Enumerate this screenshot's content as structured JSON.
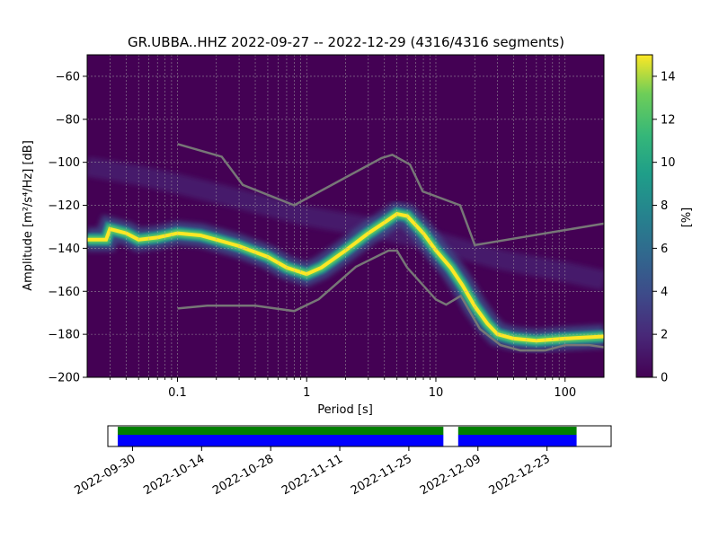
{
  "chart_data": {
    "type": "heatmap",
    "title": "GR.UBBA..HHZ   2022-09-27 -- 2022-12-29  (4316/4316 segments)",
    "xlabel": "Period [s]",
    "ylabel": "Amplitude [m²/s⁴/Hz] [dB]",
    "x_scale": "log",
    "xlim": [
      0.02,
      200
    ],
    "ylim": [
      -200,
      -50
    ],
    "x_ticks": [
      {
        "value": 0.1,
        "label": "0.1"
      },
      {
        "value": 1,
        "label": "1"
      },
      {
        "value": 10,
        "label": "10"
      },
      {
        "value": 100,
        "label": "100"
      }
    ],
    "y_ticks": [
      {
        "value": -200,
        "label": "−200"
      },
      {
        "value": -180,
        "label": "−180"
      },
      {
        "value": -160,
        "label": "−160"
      },
      {
        "value": -140,
        "label": "−140"
      },
      {
        "value": -120,
        "label": "−120"
      },
      {
        "value": -100,
        "label": "−100"
      },
      {
        "value": -80,
        "label": "−80"
      },
      {
        "value": -60,
        "label": "−60"
      }
    ],
    "grid": true,
    "colormap": "viridis",
    "colorbar": {
      "label": "[%]",
      "range": [
        0,
        15
      ],
      "ticks": [
        {
          "value": 0,
          "label": "0"
        },
        {
          "value": 2,
          "label": "2"
        },
        {
          "value": 4,
          "label": "4"
        },
        {
          "value": 6,
          "label": "6"
        },
        {
          "value": 8,
          "label": "8"
        },
        {
          "value": 10,
          "label": "10"
        },
        {
          "value": 12,
          "label": "12"
        },
        {
          "value": 14,
          "label": "14"
        }
      ]
    },
    "mode_curve": [
      [
        0.02,
        -136
      ],
      [
        0.028,
        -136
      ],
      [
        0.03,
        -131
      ],
      [
        0.04,
        -133
      ],
      [
        0.05,
        -136
      ],
      [
        0.07,
        -135
      ],
      [
        0.1,
        -133
      ],
      [
        0.15,
        -134
      ],
      [
        0.2,
        -136
      ],
      [
        0.3,
        -139
      ],
      [
        0.5,
        -144
      ],
      [
        0.7,
        -149
      ],
      [
        1.0,
        -152
      ],
      [
        1.3,
        -149
      ],
      [
        2.0,
        -141
      ],
      [
        3.0,
        -133
      ],
      [
        4.0,
        -128
      ],
      [
        5.0,
        -124
      ],
      [
        6.0,
        -125
      ],
      [
        8.0,
        -133
      ],
      [
        10,
        -141
      ],
      [
        13,
        -149
      ],
      [
        16,
        -157
      ],
      [
        20,
        -167
      ],
      [
        25,
        -175
      ],
      [
        30,
        -180
      ],
      [
        40,
        -182
      ],
      [
        60,
        -183
      ],
      [
        100,
        -182
      ],
      [
        200,
        -181
      ]
    ],
    "background_band": [
      [
        0.02,
        -102
      ],
      [
        0.05,
        -106
      ],
      [
        0.1,
        -110
      ],
      [
        0.3,
        -117
      ],
      [
        1,
        -125
      ],
      [
        3,
        -130
      ],
      [
        10,
        -137
      ],
      [
        30,
        -145
      ],
      [
        100,
        -151
      ],
      [
        200,
        -155
      ]
    ],
    "nhnm": [
      [
        0.1,
        -91.5
      ],
      [
        0.22,
        -97.4
      ],
      [
        0.32,
        -110.5
      ],
      [
        0.8,
        -120
      ],
      [
        3.8,
        -98
      ],
      [
        4.6,
        -96.5
      ],
      [
        6.3,
        -101
      ],
      [
        7.9,
        -113.5
      ],
      [
        15.4,
        -120
      ],
      [
        20,
        -138.5
      ],
      [
        200,
        -128.5
      ]
    ],
    "nlnm": [
      [
        0.1,
        -168
      ],
      [
        0.17,
        -166.7
      ],
      [
        0.4,
        -166.7
      ],
      [
        0.8,
        -169.2
      ],
      [
        1.24,
        -163.7
      ],
      [
        2.4,
        -148.6
      ],
      [
        4.3,
        -141.1
      ],
      [
        5.0,
        -141.1
      ],
      [
        6.0,
        -149
      ],
      [
        10,
        -163.8
      ],
      [
        12,
        -166.2
      ],
      [
        15.6,
        -162.1
      ],
      [
        21.9,
        -177.5
      ],
      [
        31.6,
        -185
      ],
      [
        45,
        -187.5
      ],
      [
        70,
        -187.5
      ],
      [
        101,
        -185
      ],
      [
        154,
        -185
      ],
      [
        200,
        -186
      ]
    ],
    "timeline": {
      "date_range": [
        "2022-09-25",
        "2023-01-05"
      ],
      "tick_labels": [
        "2022-09-30",
        "2022-10-14",
        "2022-10-28",
        "2022-11-11",
        "2022-11-25",
        "2022-12-09",
        "2022-12-23"
      ],
      "coverage": [
        {
          "start": "2022-09-27",
          "end": "2022-12-02"
        },
        {
          "start": "2022-12-05",
          "end": "2022-12-29"
        }
      ],
      "colors": {
        "data": "#0000ff",
        "psd": "#008000"
      }
    },
    "colors": {
      "noise_model": "#777777",
      "background": "#440154"
    }
  }
}
